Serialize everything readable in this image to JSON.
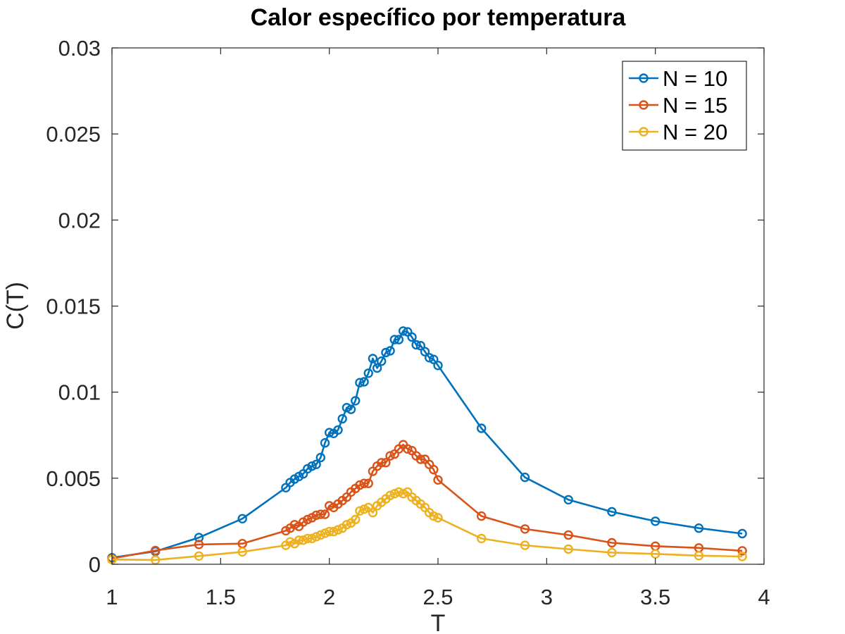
{
  "chart_data": {
    "type": "line",
    "title": "Calor específico por temperatura",
    "xlabel": "T",
    "ylabel": "C(T)",
    "xlim": [
      1,
      4
    ],
    "ylim": [
      0,
      0.03
    ],
    "xticks": [
      1,
      1.5,
      2,
      2.5,
      3,
      3.5,
      4
    ],
    "xtick_labels": [
      "1",
      "1.5",
      "2",
      "2.5",
      "3",
      "3.5",
      "4"
    ],
    "yticks": [
      0,
      0.005,
      0.01,
      0.015,
      0.02,
      0.025,
      0.03
    ],
    "ytick_labels": [
      "0",
      "0.005",
      "0.01",
      "0.015",
      "0.02",
      "0.025",
      "0.03"
    ],
    "grid": false,
    "legend_position": "top-right",
    "marker": "circle",
    "series": [
      {
        "name": "N = 10",
        "color": "#0072BD",
        "x": [
          1.0,
          1.2,
          1.4,
          1.6,
          1.8,
          1.82,
          1.84,
          1.86,
          1.88,
          1.9,
          1.92,
          1.94,
          1.96,
          1.98,
          2.0,
          2.02,
          2.04,
          2.06,
          2.08,
          2.1,
          2.12,
          2.14,
          2.16,
          2.18,
          2.2,
          2.22,
          2.24,
          2.26,
          2.28,
          2.3,
          2.32,
          2.34,
          2.36,
          2.38,
          2.4,
          2.42,
          2.44,
          2.46,
          2.48,
          2.5,
          2.7,
          2.9,
          3.1,
          3.3,
          3.5,
          3.7,
          3.9
        ],
        "y": [
          0.00038,
          0.00075,
          0.00155,
          0.00265,
          0.00445,
          0.00475,
          0.00495,
          0.0051,
          0.00525,
          0.00555,
          0.0057,
          0.0058,
          0.0062,
          0.00705,
          0.00765,
          0.0076,
          0.0078,
          0.00845,
          0.0091,
          0.009,
          0.0095,
          0.01055,
          0.0106,
          0.0111,
          0.01195,
          0.0114,
          0.0118,
          0.0123,
          0.0124,
          0.01305,
          0.01305,
          0.01355,
          0.0135,
          0.0132,
          0.01275,
          0.0127,
          0.01235,
          0.012,
          0.0119,
          0.01155,
          0.0079,
          0.00505,
          0.00375,
          0.00305,
          0.0025,
          0.0021,
          0.00178
        ]
      },
      {
        "name": "N = 15",
        "color": "#D95319",
        "x": [
          1.0,
          1.2,
          1.4,
          1.6,
          1.8,
          1.82,
          1.84,
          1.86,
          1.88,
          1.9,
          1.92,
          1.94,
          1.96,
          1.98,
          2.0,
          2.02,
          2.04,
          2.06,
          2.08,
          2.1,
          2.12,
          2.14,
          2.16,
          2.18,
          2.2,
          2.22,
          2.24,
          2.26,
          2.28,
          2.3,
          2.32,
          2.34,
          2.36,
          2.38,
          2.4,
          2.42,
          2.44,
          2.46,
          2.48,
          2.5,
          2.7,
          2.9,
          3.1,
          3.3,
          3.5,
          3.7,
          3.9
        ],
        "y": [
          0.00033,
          0.0008,
          0.00115,
          0.0012,
          0.00195,
          0.0021,
          0.0023,
          0.0022,
          0.00245,
          0.0026,
          0.0027,
          0.00285,
          0.0029,
          0.0029,
          0.0034,
          0.0033,
          0.0035,
          0.0037,
          0.0039,
          0.0042,
          0.0044,
          0.0046,
          0.0047,
          0.0047,
          0.0054,
          0.0057,
          0.0059,
          0.0059,
          0.0063,
          0.0064,
          0.0067,
          0.00695,
          0.0067,
          0.0066,
          0.0063,
          0.0061,
          0.0061,
          0.0058,
          0.0055,
          0.0049,
          0.0028,
          0.00205,
          0.0017,
          0.00125,
          0.00105,
          0.00095,
          0.00078
        ]
      },
      {
        "name": "N = 20",
        "color": "#EDB120",
        "x": [
          1.0,
          1.2,
          1.4,
          1.6,
          1.8,
          1.82,
          1.84,
          1.86,
          1.88,
          1.9,
          1.92,
          1.94,
          1.96,
          1.98,
          2.0,
          2.02,
          2.04,
          2.06,
          2.08,
          2.1,
          2.12,
          2.14,
          2.16,
          2.18,
          2.2,
          2.22,
          2.24,
          2.26,
          2.28,
          2.3,
          2.32,
          2.34,
          2.36,
          2.38,
          2.4,
          2.42,
          2.44,
          2.46,
          2.48,
          2.5,
          2.7,
          2.9,
          3.1,
          3.3,
          3.5,
          3.7,
          3.9
        ],
        "y": [
          0.00028,
          0.00025,
          0.00048,
          0.00072,
          0.0011,
          0.0013,
          0.0012,
          0.0014,
          0.0014,
          0.0015,
          0.0015,
          0.0016,
          0.0017,
          0.0018,
          0.0019,
          0.0019,
          0.002,
          0.0021,
          0.0023,
          0.0024,
          0.0026,
          0.0031,
          0.0032,
          0.0033,
          0.003,
          0.0034,
          0.0036,
          0.0038,
          0.004,
          0.0041,
          0.0042,
          0.0041,
          0.0042,
          0.0039,
          0.0037,
          0.0035,
          0.0033,
          0.003,
          0.0028,
          0.0027,
          0.0015,
          0.0011,
          0.00088,
          0.00068,
          0.0006,
          0.0005,
          0.00045
        ]
      }
    ]
  }
}
